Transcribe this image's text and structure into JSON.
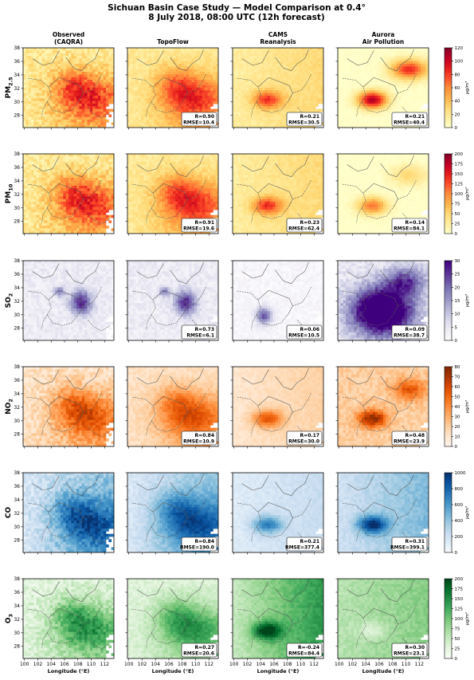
{
  "figure": {
    "title_line1": "Sichuan Basin Case Study — Model Comparison at 0.4°",
    "title_line2": "8 July 2018, 08:00 UTC (12h forecast)"
  },
  "chart_data": {
    "type": "heatmap",
    "columns": [
      {
        "line1": "Observed",
        "line2": "(CAQRA)"
      },
      {
        "line1": "TopoFlow",
        "line2": ""
      },
      {
        "line1": "CAMS",
        "line2": "Reanalysis"
      },
      {
        "line1": "Aurora",
        "line2": "Air Pollution"
      }
    ],
    "x_ticks": [
      100,
      102,
      104,
      106,
      108,
      110,
      112
    ],
    "y_ticks": [
      28,
      30,
      32,
      34,
      36,
      38
    ],
    "xlabel": "Longitude (°E)",
    "xlim": [
      99.8,
      113.4
    ],
    "ylim": [
      26.2,
      38.0
    ],
    "colorbar_unit": "μg/m³",
    "rows": [
      {
        "pollutant": "PM",
        "sub": "2.5",
        "cmap": "YlOrRd",
        "cbar_ticks": [
          0,
          20,
          40,
          60,
          80,
          100,
          120
        ],
        "vmax": 120,
        "stats": [
          null,
          {
            "R": "R=0.90",
            "RMSE": "RMSE=10.4"
          },
          {
            "R": "R=0.21",
            "RMSE": "RMSE=30.5"
          },
          {
            "R": "R=0.21",
            "RMSE": "RMSE=40.4"
          }
        ]
      },
      {
        "pollutant": "PM",
        "sub": "10",
        "cmap": "YlOrRd",
        "cbar_ticks": [
          0,
          25,
          50,
          75,
          100,
          125,
          150,
          175,
          200
        ],
        "vmax": 200,
        "stats": [
          null,
          {
            "R": "R=0.91",
            "RMSE": "RMSE=19.6"
          },
          {
            "R": "R=0.23",
            "RMSE": "RMSE=62.4"
          },
          {
            "R": "R=0.14",
            "RMSE": "RMSE=84.1"
          }
        ]
      },
      {
        "pollutant": "SO",
        "sub": "2",
        "cmap": "Purples",
        "cbar_ticks": [
          0,
          5,
          10,
          15,
          20,
          25,
          30
        ],
        "vmax": 30,
        "stats": [
          null,
          {
            "R": "R=0.73",
            "RMSE": "RMSE=6.1"
          },
          {
            "R": "R=0.06",
            "RMSE": "RMSE=10.5"
          },
          {
            "R": "R=0.09",
            "RMSE": "RMSE=38.7"
          }
        ]
      },
      {
        "pollutant": "NO",
        "sub": "2",
        "cmap": "Oranges",
        "cbar_ticks": [
          0,
          10,
          20,
          30,
          40,
          50,
          60,
          70,
          80
        ],
        "vmax": 80,
        "stats": [
          null,
          {
            "R": "R=0.84",
            "RMSE": "RMSE=10.9"
          },
          {
            "R": "R=0.17",
            "RMSE": "RMSE=30.0"
          },
          {
            "R": "R=0.48",
            "RMSE": "RMSE=23.9"
          }
        ]
      },
      {
        "pollutant": "CO",
        "sub": "",
        "cmap": "Blues",
        "cbar_ticks": [
          0,
          200,
          400,
          600,
          800,
          1000
        ],
        "vmax": 1000,
        "stats": [
          null,
          {
            "R": "R=0.84",
            "RMSE": "RMSE=190.0"
          },
          {
            "R": "R=0.21",
            "RMSE": "RMSE=377.4"
          },
          {
            "R": "R=0.31",
            "RMSE": "RMSE=399.1"
          }
        ]
      },
      {
        "pollutant": "O",
        "sub": "3",
        "cmap": "Greens",
        "cbar_ticks": [
          0,
          25,
          50,
          75,
          100,
          125,
          150,
          175,
          200
        ],
        "vmax": 200,
        "stats": [
          null,
          {
            "R": "R=0.27",
            "RMSE": "RMSE=20.6"
          },
          {
            "R": "R=-0.24",
            "RMSE": "RMSE=84.4"
          },
          {
            "R": "R=0.30",
            "RMSE": "RMSE=23.1"
          }
        ]
      }
    ]
  }
}
